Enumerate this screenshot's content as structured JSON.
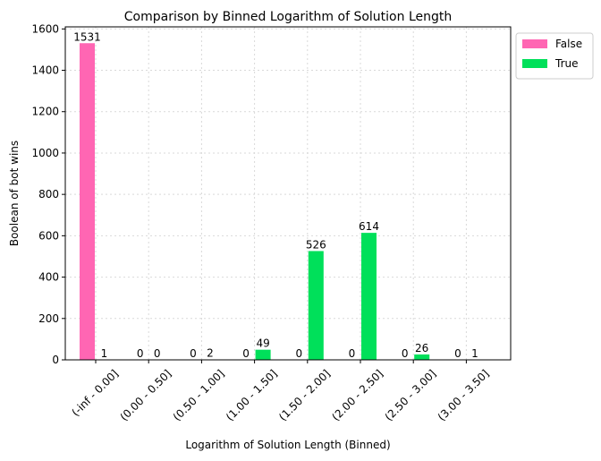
{
  "chart_data": {
    "type": "bar",
    "title": "Comparison by Binned Logarithm of Solution Length",
    "xlabel": "Logarithm of Solution Length (Binned)",
    "ylabel": "Boolean of bot wins",
    "categories": [
      "(-inf -  0.00]",
      "(0.00 -  0.50]",
      "(0.50 -  1.00]",
      "(1.00 -  1.50]",
      "(1.50 -  2.00]",
      "(2.00 -  2.50]",
      "(2.50 -  3.00]",
      "(3.00 -  3.50]"
    ],
    "series": [
      {
        "name": "False",
        "color": "#ff66b3",
        "values": [
          1531,
          0,
          0,
          0,
          0,
          0,
          0,
          0
        ]
      },
      {
        "name": "True",
        "color": "#00e05a",
        "values": [
          1,
          0,
          2,
          49,
          526,
          614,
          26,
          1
        ]
      }
    ],
    "ylim": [
      0,
      1610
    ],
    "yticks": [
      0,
      200,
      400,
      600,
      800,
      1000,
      1200,
      1400,
      1600
    ],
    "grid": true,
    "legend_position": "outside-top-right"
  }
}
